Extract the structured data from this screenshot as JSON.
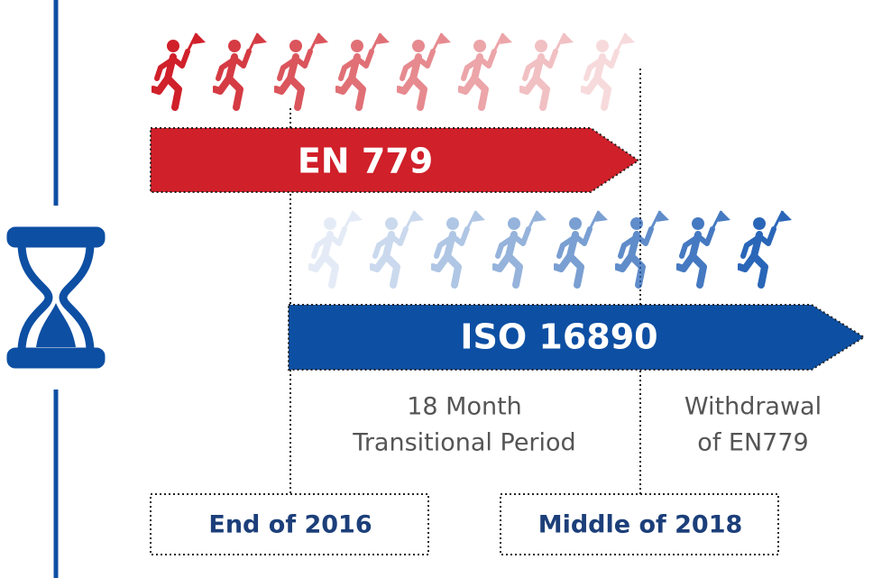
{
  "arrows": [
    {
      "label": "EN 779"
    },
    {
      "label": "ISO 16890"
    }
  ],
  "notes": [
    {
      "lines": [
        "18 Month",
        "Transitional Period"
      ]
    },
    {
      "lines": [
        "Withdrawal",
        "of EN779"
      ]
    }
  ],
  "milestones": [
    {
      "label": "End of 2016"
    },
    {
      "label": "Middle of 2018"
    }
  ]
}
